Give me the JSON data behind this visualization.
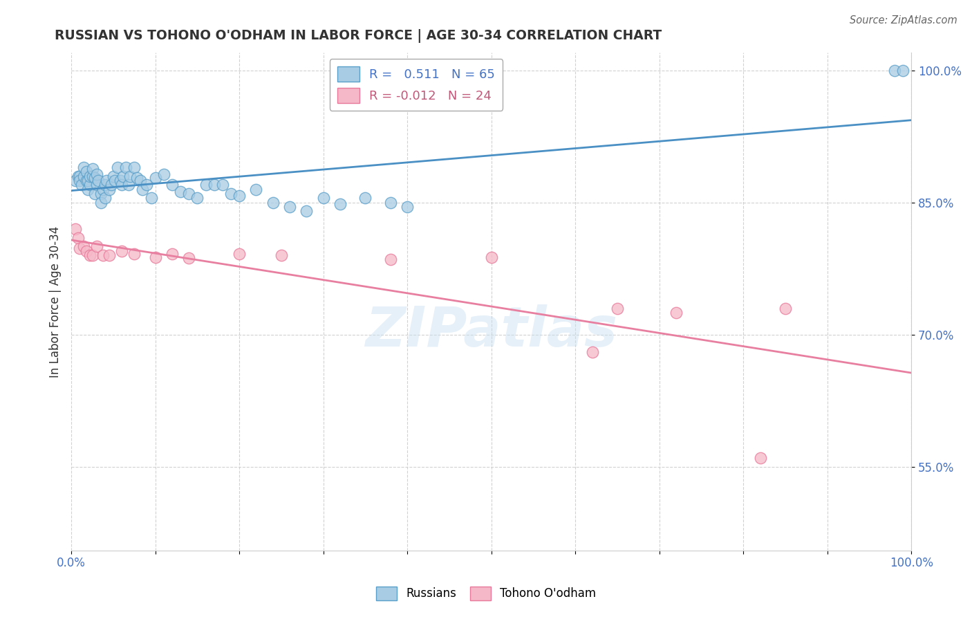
{
  "title": "RUSSIAN VS TOHONO O'ODHAM IN LABOR FORCE | AGE 30-34 CORRELATION CHART",
  "source_text": "Source: ZipAtlas.com",
  "ylabel": "In Labor Force | Age 30-34",
  "xlim": [
    0,
    1.0
  ],
  "ylim": [
    0.455,
    1.02
  ],
  "x_tick_positions": [
    0.0,
    0.1,
    0.2,
    0.3,
    0.4,
    0.5,
    0.6,
    0.7,
    0.8,
    0.9,
    1.0
  ],
  "x_tick_labels": [
    "0.0%",
    "",
    "",
    "",
    "",
    "",
    "",
    "",
    "",
    "",
    "100.0%"
  ],
  "y_tick_positions": [
    0.55,
    0.7,
    0.85,
    1.0
  ],
  "y_tick_labels": [
    "55.0%",
    "70.0%",
    "85.0%",
    "100.0%"
  ],
  "legend_R_blue": "0.511",
  "legend_N_blue": 65,
  "legend_R_pink": "-0.012",
  "legend_N_pink": 24,
  "blue_face_color": "#a8cce4",
  "blue_edge_color": "#5a9fc9",
  "pink_face_color": "#f5b8c8",
  "pink_edge_color": "#e8799a",
  "blue_line_color": "#4a90c4",
  "pink_line_color": "#e87fa0",
  "watermark_text": "ZIPatlas",
  "russians_x": [
    0.005,
    0.008,
    0.01,
    0.01,
    0.012,
    0.015,
    0.015,
    0.018,
    0.018,
    0.02,
    0.02,
    0.022,
    0.022,
    0.025,
    0.025,
    0.028,
    0.028,
    0.03,
    0.03,
    0.032,
    0.035,
    0.035,
    0.038,
    0.04,
    0.04,
    0.042,
    0.045,
    0.048,
    0.05,
    0.052,
    0.055,
    0.058,
    0.06,
    0.062,
    0.065,
    0.068,
    0.07,
    0.075,
    0.078,
    0.082,
    0.085,
    0.09,
    0.095,
    0.1,
    0.11,
    0.12,
    0.13,
    0.14,
    0.15,
    0.16,
    0.17,
    0.18,
    0.19,
    0.2,
    0.22,
    0.24,
    0.26,
    0.28,
    0.3,
    0.32,
    0.35,
    0.38,
    0.4,
    0.98,
    0.99
  ],
  "russians_y": [
    0.875,
    0.88,
    0.88,
    0.875,
    0.87,
    0.88,
    0.89,
    0.875,
    0.885,
    0.865,
    0.875,
    0.87,
    0.88,
    0.88,
    0.888,
    0.878,
    0.86,
    0.87,
    0.882,
    0.875,
    0.86,
    0.85,
    0.865,
    0.87,
    0.855,
    0.875,
    0.865,
    0.87,
    0.88,
    0.875,
    0.89,
    0.875,
    0.87,
    0.88,
    0.89,
    0.87,
    0.88,
    0.89,
    0.878,
    0.875,
    0.865,
    0.87,
    0.855,
    0.878,
    0.882,
    0.87,
    0.862,
    0.86,
    0.855,
    0.87,
    0.87,
    0.87,
    0.86,
    0.858,
    0.865,
    0.85,
    0.845,
    0.84,
    0.855,
    0.848,
    0.855,
    0.85,
    0.845,
    1.0,
    1.0
  ],
  "tohono_x": [
    0.005,
    0.008,
    0.01,
    0.015,
    0.018,
    0.022,
    0.025,
    0.03,
    0.038,
    0.045,
    0.06,
    0.075,
    0.1,
    0.12,
    0.14,
    0.2,
    0.25,
    0.38,
    0.5,
    0.62,
    0.65,
    0.72,
    0.82,
    0.85
  ],
  "tohono_y": [
    0.82,
    0.81,
    0.798,
    0.8,
    0.795,
    0.79,
    0.79,
    0.8,
    0.79,
    0.79,
    0.795,
    0.792,
    0.788,
    0.792,
    0.787,
    0.792,
    0.79,
    0.785,
    0.788,
    0.68,
    0.73,
    0.725,
    0.56,
    0.73
  ]
}
